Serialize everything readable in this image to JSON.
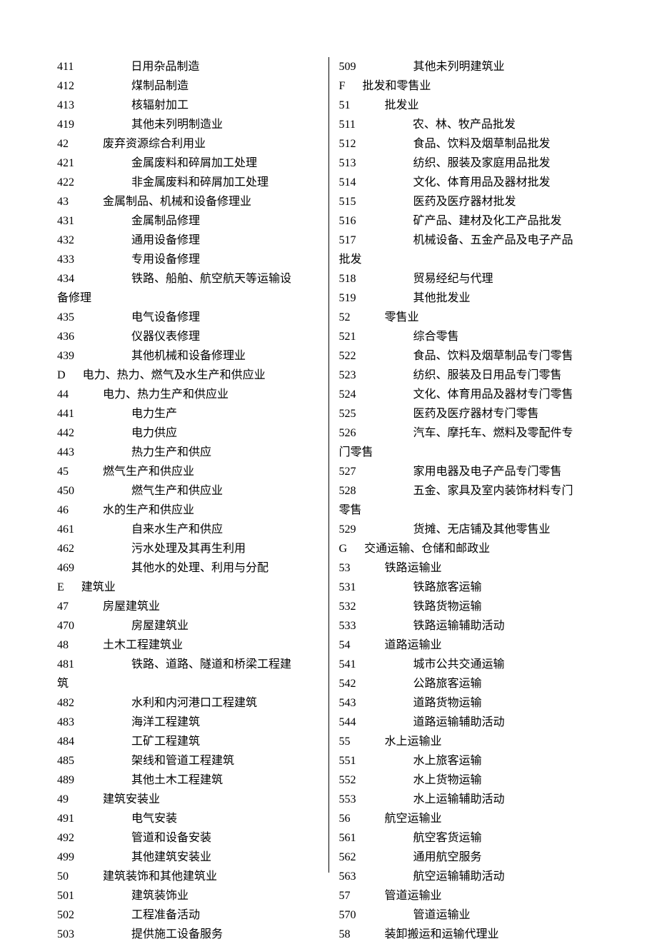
{
  "left": [
    {
      "code": "411",
      "indent": "d",
      "label": "日用杂品制造"
    },
    {
      "code": "412",
      "indent": "d",
      "label": "煤制品制造"
    },
    {
      "code": "413",
      "indent": "d",
      "label": "核辐射加工"
    },
    {
      "code": "419",
      "indent": "d",
      "label": "其他未列明制造业"
    },
    {
      "code": "42",
      "indent": "c",
      "label": "废弃资源综合利用业"
    },
    {
      "code": "421",
      "indent": "d",
      "label": "金属废料和碎屑加工处理"
    },
    {
      "code": "422",
      "indent": "d",
      "label": "非金属废料和碎屑加工处理"
    },
    {
      "code": "43",
      "indent": "c",
      "label": "金属制品、机械和设备修理业"
    },
    {
      "code": "431",
      "indent": "d",
      "label": "金属制品修理"
    },
    {
      "code": "432",
      "indent": "d",
      "label": "通用设备修理"
    },
    {
      "code": "433",
      "indent": "d",
      "label": "专用设备修理"
    },
    {
      "code": "434",
      "indent": "d",
      "label": "铁路、船舶、航空航天等运输设"
    },
    {
      "code": "",
      "indent": "none",
      "label": "备修理"
    },
    {
      "code": "435",
      "indent": "d",
      "label": "电气设备修理"
    },
    {
      "code": "436",
      "indent": "d",
      "label": "仪器仪表修理"
    },
    {
      "code": "439",
      "indent": "d",
      "label": "其他机械和设备修理业"
    },
    {
      "code": "D",
      "indent": "b",
      "label": "电力、热力、燃气及水生产和供应业"
    },
    {
      "code": "44",
      "indent": "c",
      "label": "电力、热力生产和供应业"
    },
    {
      "code": "441",
      "indent": "d",
      "label": "电力生产"
    },
    {
      "code": "442",
      "indent": "d",
      "label": "电力供应"
    },
    {
      "code": "443",
      "indent": "d",
      "label": "热力生产和供应"
    },
    {
      "code": "45",
      "indent": "c",
      "label": "燃气生产和供应业"
    },
    {
      "code": "450",
      "indent": "d",
      "label": "燃气生产和供应业"
    },
    {
      "code": "46",
      "indent": "c",
      "label": "水的生产和供应业"
    },
    {
      "code": "461",
      "indent": "d",
      "label": "自来水生产和供应"
    },
    {
      "code": "462",
      "indent": "d",
      "label": "污水处理及其再生利用"
    },
    {
      "code": "469",
      "indent": "d",
      "label": "其他水的处理、利用与分配"
    },
    {
      "code": "E",
      "indent": "b",
      "label": "建筑业"
    },
    {
      "code": "47",
      "indent": "c",
      "label": "房屋建筑业"
    },
    {
      "code": "470",
      "indent": "d",
      "label": "房屋建筑业"
    },
    {
      "code": "48",
      "indent": "c",
      "label": "土木工程建筑业"
    },
    {
      "code": "481",
      "indent": "d",
      "label": "铁路、道路、隧道和桥梁工程建"
    },
    {
      "code": "",
      "indent": "none",
      "label": "筑"
    },
    {
      "code": "482",
      "indent": "d",
      "label": "水利和内河港口工程建筑"
    },
    {
      "code": "483",
      "indent": "d",
      "label": "海洋工程建筑"
    },
    {
      "code": "484",
      "indent": "d",
      "label": "工矿工程建筑"
    },
    {
      "code": "485",
      "indent": "d",
      "label": "架线和管道工程建筑"
    },
    {
      "code": "489",
      "indent": "d",
      "label": "其他土木工程建筑"
    },
    {
      "code": "49",
      "indent": "c",
      "label": "建筑安装业"
    },
    {
      "code": "491",
      "indent": "d",
      "label": "电气安装"
    },
    {
      "code": "492",
      "indent": "d",
      "label": "管道和设备安装"
    },
    {
      "code": "499",
      "indent": "d",
      "label": "其他建筑安装业"
    },
    {
      "code": "50",
      "indent": "c",
      "label": "建筑装饰和其他建筑业"
    },
    {
      "code": "501",
      "indent": "d",
      "label": "建筑装饰业"
    },
    {
      "code": "502",
      "indent": "d",
      "label": "工程准备活动"
    },
    {
      "code": "503",
      "indent": "d",
      "label": "提供施工设备服务"
    }
  ],
  "right": [
    {
      "code": "509",
      "indent": "d",
      "label": "其他未列明建筑业"
    },
    {
      "code": "F",
      "indent": "b",
      "label": "批发和零售业"
    },
    {
      "code": "51",
      "indent": "c",
      "label": "批发业"
    },
    {
      "code": "511",
      "indent": "d",
      "label": "农、林、牧产品批发"
    },
    {
      "code": "512",
      "indent": "d",
      "label": "食品、饮料及烟草制品批发"
    },
    {
      "code": "513",
      "indent": "d",
      "label": "纺织、服装及家庭用品批发"
    },
    {
      "code": "514",
      "indent": "d",
      "label": "文化、体育用品及器材批发"
    },
    {
      "code": "515",
      "indent": "d",
      "label": "医药及医疗器材批发"
    },
    {
      "code": "516",
      "indent": "d",
      "label": "矿产品、建材及化工产品批发"
    },
    {
      "code": "517",
      "indent": "d",
      "label": "机械设备、五金产品及电子产品"
    },
    {
      "code": "",
      "indent": "none",
      "label": "批发"
    },
    {
      "code": "518",
      "indent": "d",
      "label": "贸易经纪与代理"
    },
    {
      "code": "519",
      "indent": "d",
      "label": "其他批发业"
    },
    {
      "code": "52",
      "indent": "c",
      "label": "零售业"
    },
    {
      "code": "521",
      "indent": "d",
      "label": "综合零售"
    },
    {
      "code": "522",
      "indent": "d",
      "label": "食品、饮料及烟草制品专门零售"
    },
    {
      "code": "523",
      "indent": "d",
      "label": "纺织、服装及日用品专门零售"
    },
    {
      "code": "524",
      "indent": "d",
      "label": "文化、体育用品及器材专门零售"
    },
    {
      "code": "525",
      "indent": "d",
      "label": "医药及医疗器材专门零售"
    },
    {
      "code": "526",
      "indent": "d",
      "label": "汽车、摩托车、燃料及零配件专"
    },
    {
      "code": "",
      "indent": "none",
      "label": "门零售"
    },
    {
      "code": "527",
      "indent": "d",
      "label": "家用电器及电子产品专门零售"
    },
    {
      "code": "528",
      "indent": "d",
      "label": "五金、家具及室内装饰材料专门"
    },
    {
      "code": "",
      "indent": "none",
      "label": "零售"
    },
    {
      "code": "529",
      "indent": "d",
      "label": "货摊、无店铺及其他零售业"
    },
    {
      "code": "G",
      "indent": "b",
      "label": "交通运输、仓储和邮政业"
    },
    {
      "code": "53",
      "indent": "c",
      "label": "铁路运输业"
    },
    {
      "code": "531",
      "indent": "d",
      "label": "铁路旅客运输"
    },
    {
      "code": "532",
      "indent": "d",
      "label": "铁路货物运输"
    },
    {
      "code": "533",
      "indent": "d",
      "label": "铁路运输辅助活动"
    },
    {
      "code": "54",
      "indent": "c",
      "label": "道路运输业"
    },
    {
      "code": "541",
      "indent": "d",
      "label": "城市公共交通运输"
    },
    {
      "code": "542",
      "indent": "d",
      "label": "公路旅客运输"
    },
    {
      "code": "543",
      "indent": "d",
      "label": "道路货物运输"
    },
    {
      "code": "544",
      "indent": "d",
      "label": "道路运输辅助活动"
    },
    {
      "code": "55",
      "indent": "c",
      "label": "水上运输业"
    },
    {
      "code": "551",
      "indent": "d",
      "label": "水上旅客运输"
    },
    {
      "code": "552",
      "indent": "d",
      "label": "水上货物运输"
    },
    {
      "code": "553",
      "indent": "d",
      "label": "水上运输辅助活动"
    },
    {
      "code": "56",
      "indent": "c",
      "label": "航空运输业"
    },
    {
      "code": "561",
      "indent": "d",
      "label": "航空客货运输"
    },
    {
      "code": "562",
      "indent": "d",
      "label": "通用航空服务"
    },
    {
      "code": "563",
      "indent": "d",
      "label": "航空运输辅助活动"
    },
    {
      "code": "57",
      "indent": "c",
      "label": "管道运输业"
    },
    {
      "code": "570",
      "indent": "d",
      "label": "管道运输业"
    },
    {
      "code": "58",
      "indent": "c",
      "label": "装卸搬运和运输代理业"
    }
  ]
}
